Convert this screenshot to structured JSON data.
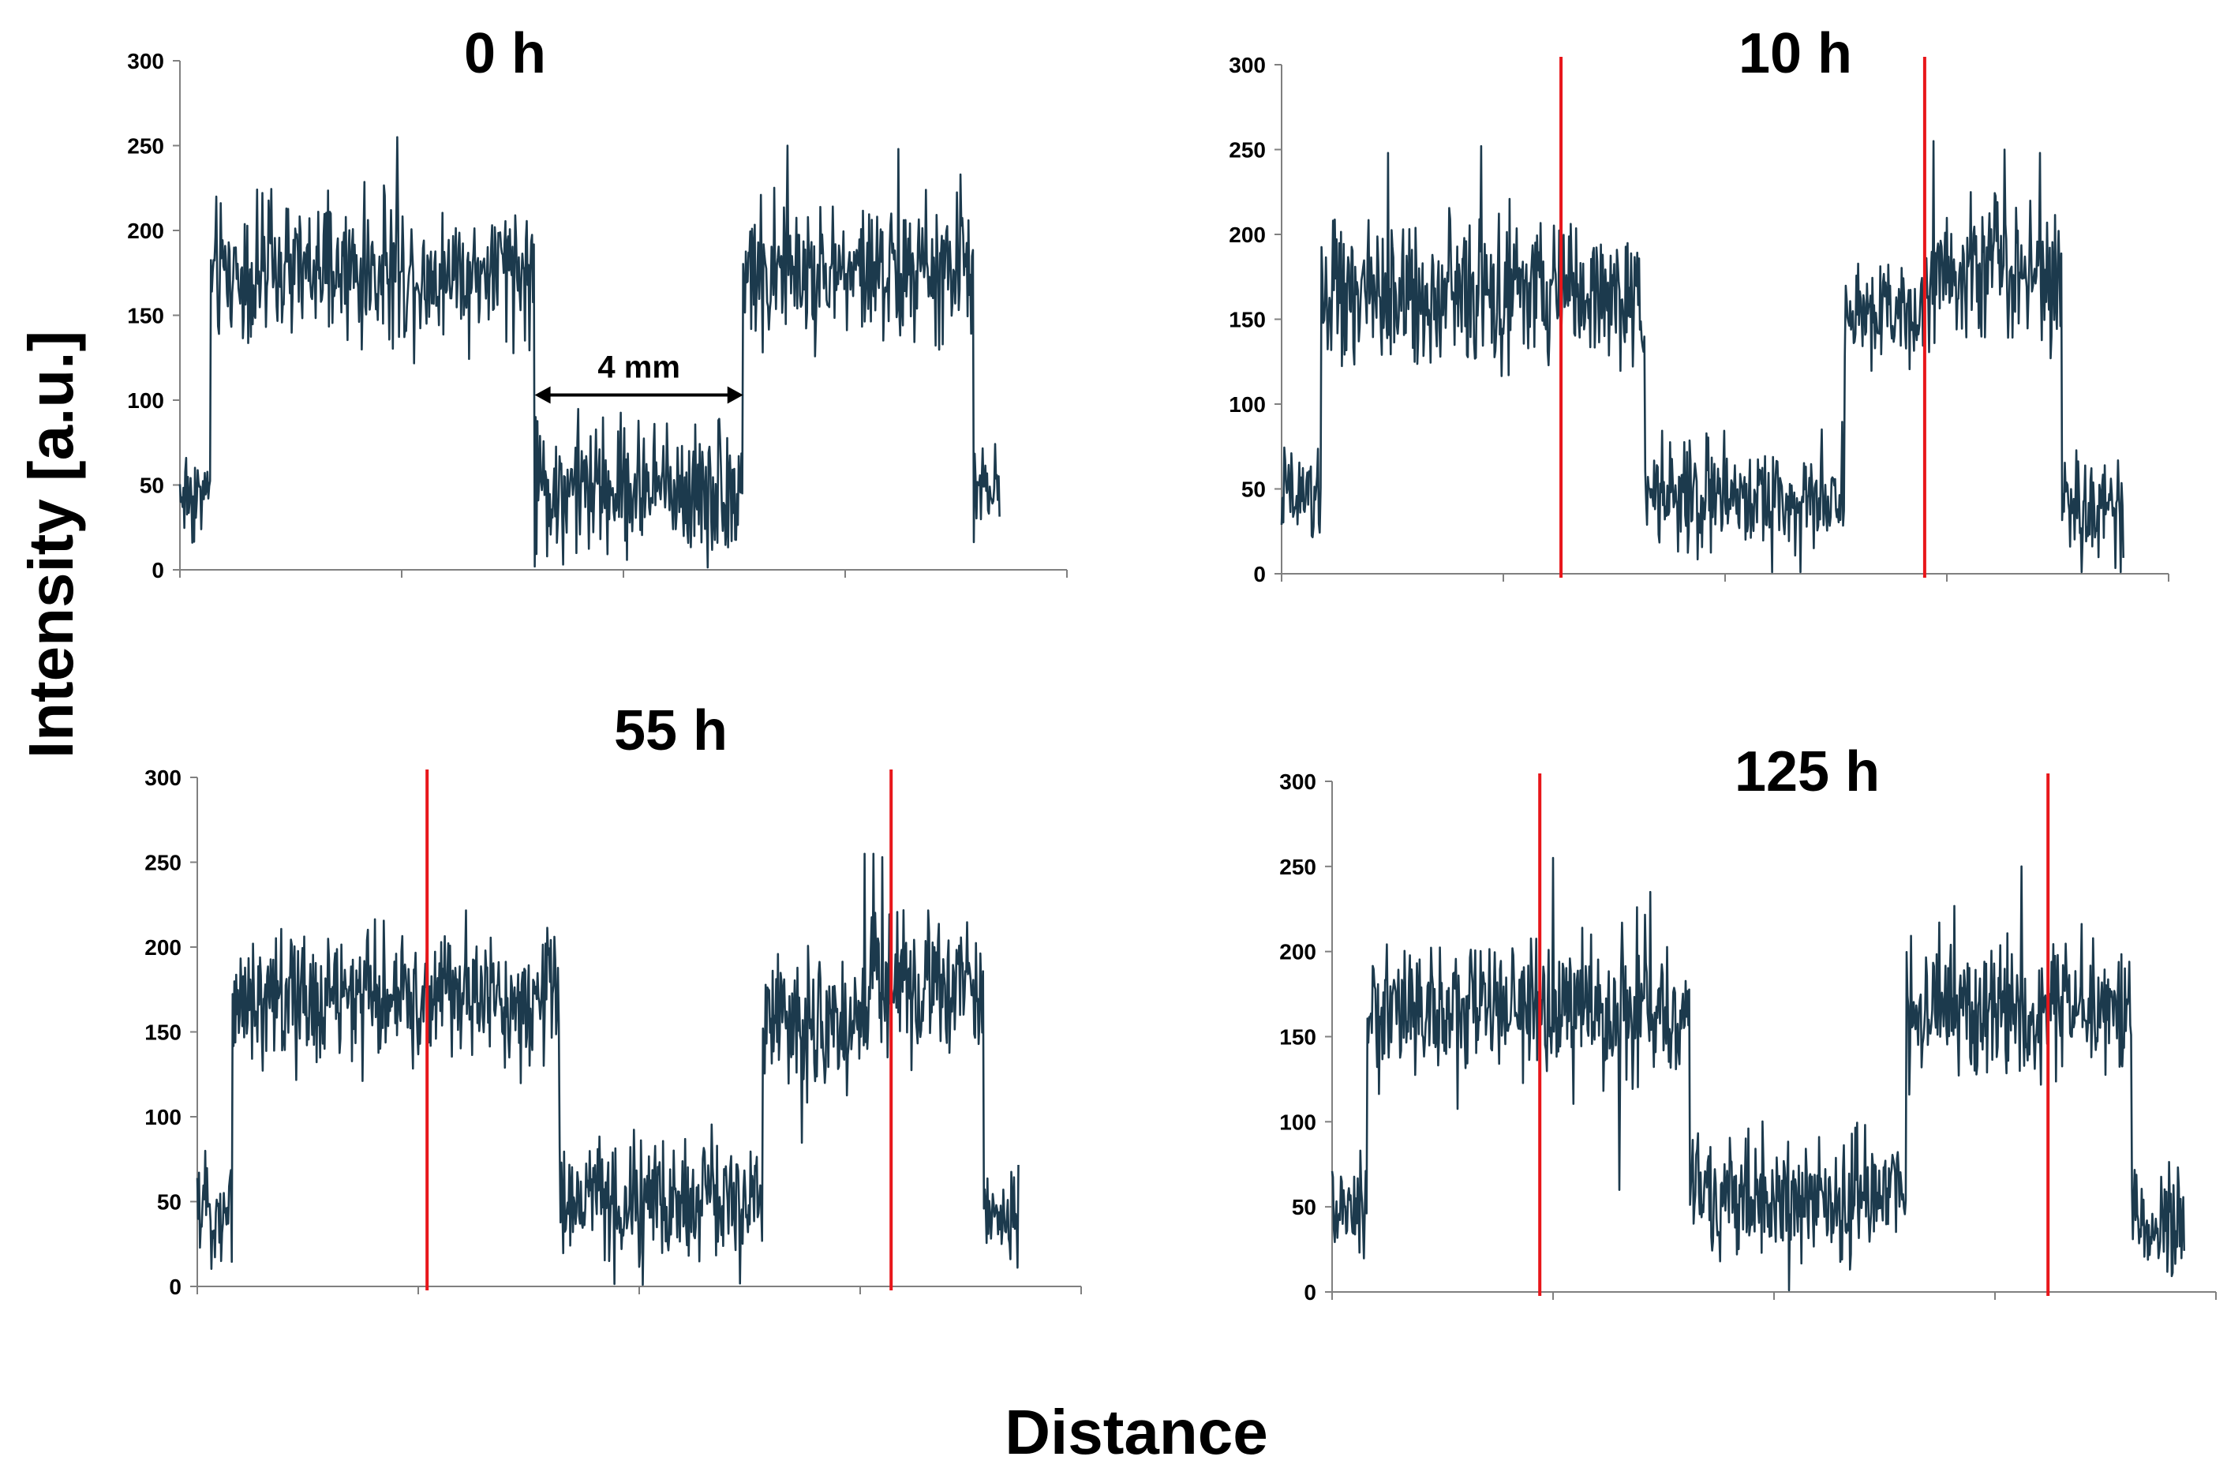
{
  "figure": {
    "ylabel": "Intensity [a.u.]",
    "xlabel": "Distance"
  },
  "chart_data": [
    {
      "type": "line",
      "title": "0 h",
      "ylim": [
        0,
        300
      ],
      "yticks": [
        0,
        50,
        100,
        150,
        200,
        250,
        300
      ],
      "xlim": [
        0,
        20
      ],
      "xticks": [
        0,
        5,
        10,
        15,
        20
      ],
      "x_tick_labels": false,
      "markers": [],
      "annotation": {
        "text": "4 mm",
        "x_start": 8.0,
        "x_end": 12.7,
        "y": 103
      },
      "series": [
        {
          "color": "#1c3a4d",
          "segments": [
            {
              "x0": 0.0,
              "x1": 0.7,
              "base": 45,
              "noise": 16
            },
            {
              "x0": 0.7,
              "x1": 8.0,
              "base": 175,
              "noise": 20
            },
            {
              "x0": 8.0,
              "x1": 12.7,
              "base": 48,
              "noise": 20
            },
            {
              "x0": 12.7,
              "x1": 17.9,
              "base": 175,
              "noise": 20
            },
            {
              "x0": 17.9,
              "x1": 18.5,
              "base": 45,
              "noise": 14
            }
          ],
          "peaks": [
            {
              "x": 4.9,
              "y": 255
            },
            {
              "x": 13.7,
              "y": 250
            },
            {
              "x": 16.2,
              "y": 248
            },
            {
              "x": 17.6,
              "y": 233
            },
            {
              "x": 8.0,
              "y": 2
            }
          ]
        }
      ]
    },
    {
      "type": "line",
      "title": "10 h",
      "ylim": [
        0,
        300
      ],
      "yticks": [
        0,
        50,
        100,
        150,
        200,
        250,
        300
      ],
      "xlim": [
        0,
        20
      ],
      "xticks": [
        0,
        5,
        10,
        15,
        20
      ],
      "x_tick_labels": false,
      "markers": [
        6.3,
        14.5
      ],
      "series": [
        {
          "color": "#1c3a4d",
          "segments": [
            {
              "x0": 0.0,
              "x1": 0.9,
              "base": 45,
              "noise": 14
            },
            {
              "x0": 0.9,
              "x1": 8.2,
              "base": 165,
              "noise": 20
            },
            {
              "x0": 8.2,
              "x1": 12.7,
              "base": 45,
              "noise": 16
            },
            {
              "x0": 12.7,
              "x1": 14.5,
              "base": 155,
              "noise": 16
            },
            {
              "x0": 14.5,
              "x1": 17.6,
              "base": 180,
              "noise": 20
            },
            {
              "x0": 17.6,
              "x1": 19.0,
              "base": 40,
              "noise": 16
            }
          ],
          "peaks": [
            {
              "x": 2.4,
              "y": 248
            },
            {
              "x": 4.5,
              "y": 252
            },
            {
              "x": 14.7,
              "y": 255
            },
            {
              "x": 16.3,
              "y": 250
            },
            {
              "x": 17.1,
              "y": 248
            }
          ]
        }
      ]
    },
    {
      "type": "line",
      "title": "55 h",
      "ylim": [
        0,
        300
      ],
      "yticks": [
        0,
        50,
        100,
        150,
        200,
        250,
        300
      ],
      "xlim": [
        0,
        20
      ],
      "xticks": [
        0,
        5,
        10,
        15,
        20
      ],
      "x_tick_labels": false,
      "markers": [
        5.2,
        15.7
      ],
      "series": [
        {
          "color": "#1c3a4d",
          "segments": [
            {
              "x0": 0.0,
              "x1": 0.8,
              "base": 45,
              "noise": 14
            },
            {
              "x0": 0.8,
              "x1": 8.2,
              "base": 170,
              "noise": 20
            },
            {
              "x0": 8.2,
              "x1": 12.8,
              "base": 50,
              "noise": 18
            },
            {
              "x0": 12.8,
              "x1": 15.2,
              "base": 155,
              "noise": 20
            },
            {
              "x0": 15.2,
              "x1": 17.8,
              "base": 178,
              "noise": 20
            },
            {
              "x0": 17.8,
              "x1": 18.6,
              "base": 40,
              "noise": 16
            }
          ],
          "peaks": [
            {
              "x": 15.1,
              "y": 255
            },
            {
              "x": 15.3,
              "y": 255
            },
            {
              "x": 15.5,
              "y": 253
            },
            {
              "x": 5.2,
              "y": 212
            }
          ]
        }
      ]
    },
    {
      "type": "line",
      "title": "125 h",
      "ylim": [
        0,
        300
      ],
      "yticks": [
        0,
        50,
        100,
        150,
        200,
        250,
        300
      ],
      "xlim": [
        0,
        20
      ],
      "xticks": [
        0,
        5,
        10,
        15,
        20
      ],
      "x_tick_labels": false,
      "markers": [
        4.7,
        16.2
      ],
      "series": [
        {
          "color": "#1c3a4d",
          "segments": [
            {
              "x0": 0.0,
              "x1": 0.8,
              "base": 45,
              "noise": 14
            },
            {
              "x0": 0.8,
              "x1": 8.1,
              "base": 165,
              "noise": 20
            },
            {
              "x0": 8.1,
              "x1": 13.0,
              "base": 55,
              "noise": 18
            },
            {
              "x0": 13.0,
              "x1": 18.1,
              "base": 165,
              "noise": 20
            },
            {
              "x0": 18.1,
              "x1": 19.3,
              "base": 40,
              "noise": 16
            }
          ],
          "peaks": [
            {
              "x": 5.0,
              "y": 255
            },
            {
              "x": 7.2,
              "y": 235
            },
            {
              "x": 15.6,
              "y": 250
            },
            {
              "x": 6.5,
              "y": 60
            }
          ]
        }
      ]
    }
  ]
}
